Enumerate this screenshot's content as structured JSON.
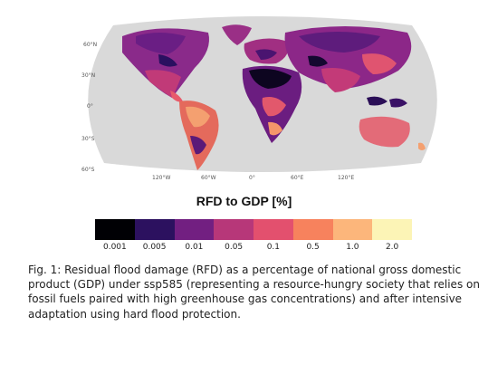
{
  "figure": {
    "map": {
      "lat_labels": [
        "60°N",
        "30°N",
        "0°",
        "30°S",
        "60°S"
      ],
      "lon_labels": [
        "120°W",
        "60°W",
        "0°",
        "60°E",
        "120°E"
      ]
    },
    "legend": {
      "title": "RFD to GDP [%]",
      "ticks": [
        "0.001",
        "0.005",
        "0.01",
        "0.05",
        "0.1",
        "0.5",
        "1.0",
        "2.0"
      ],
      "colors": [
        "#000004",
        "#2c115f",
        "#721f81",
        "#b73779",
        "#e3506e",
        "#f7825d",
        "#fcb67b",
        "#fcf4b6"
      ]
    },
    "caption": "Fig. 1: Residual flood damage (RFD) as a percentage of national gross domestic product (GDP) under ssp585 (representing a resource-hungry society that relies on fossil fuels paired with high greenhouse gas concentrations) and after intensive adaptation using hard flood protection."
  }
}
